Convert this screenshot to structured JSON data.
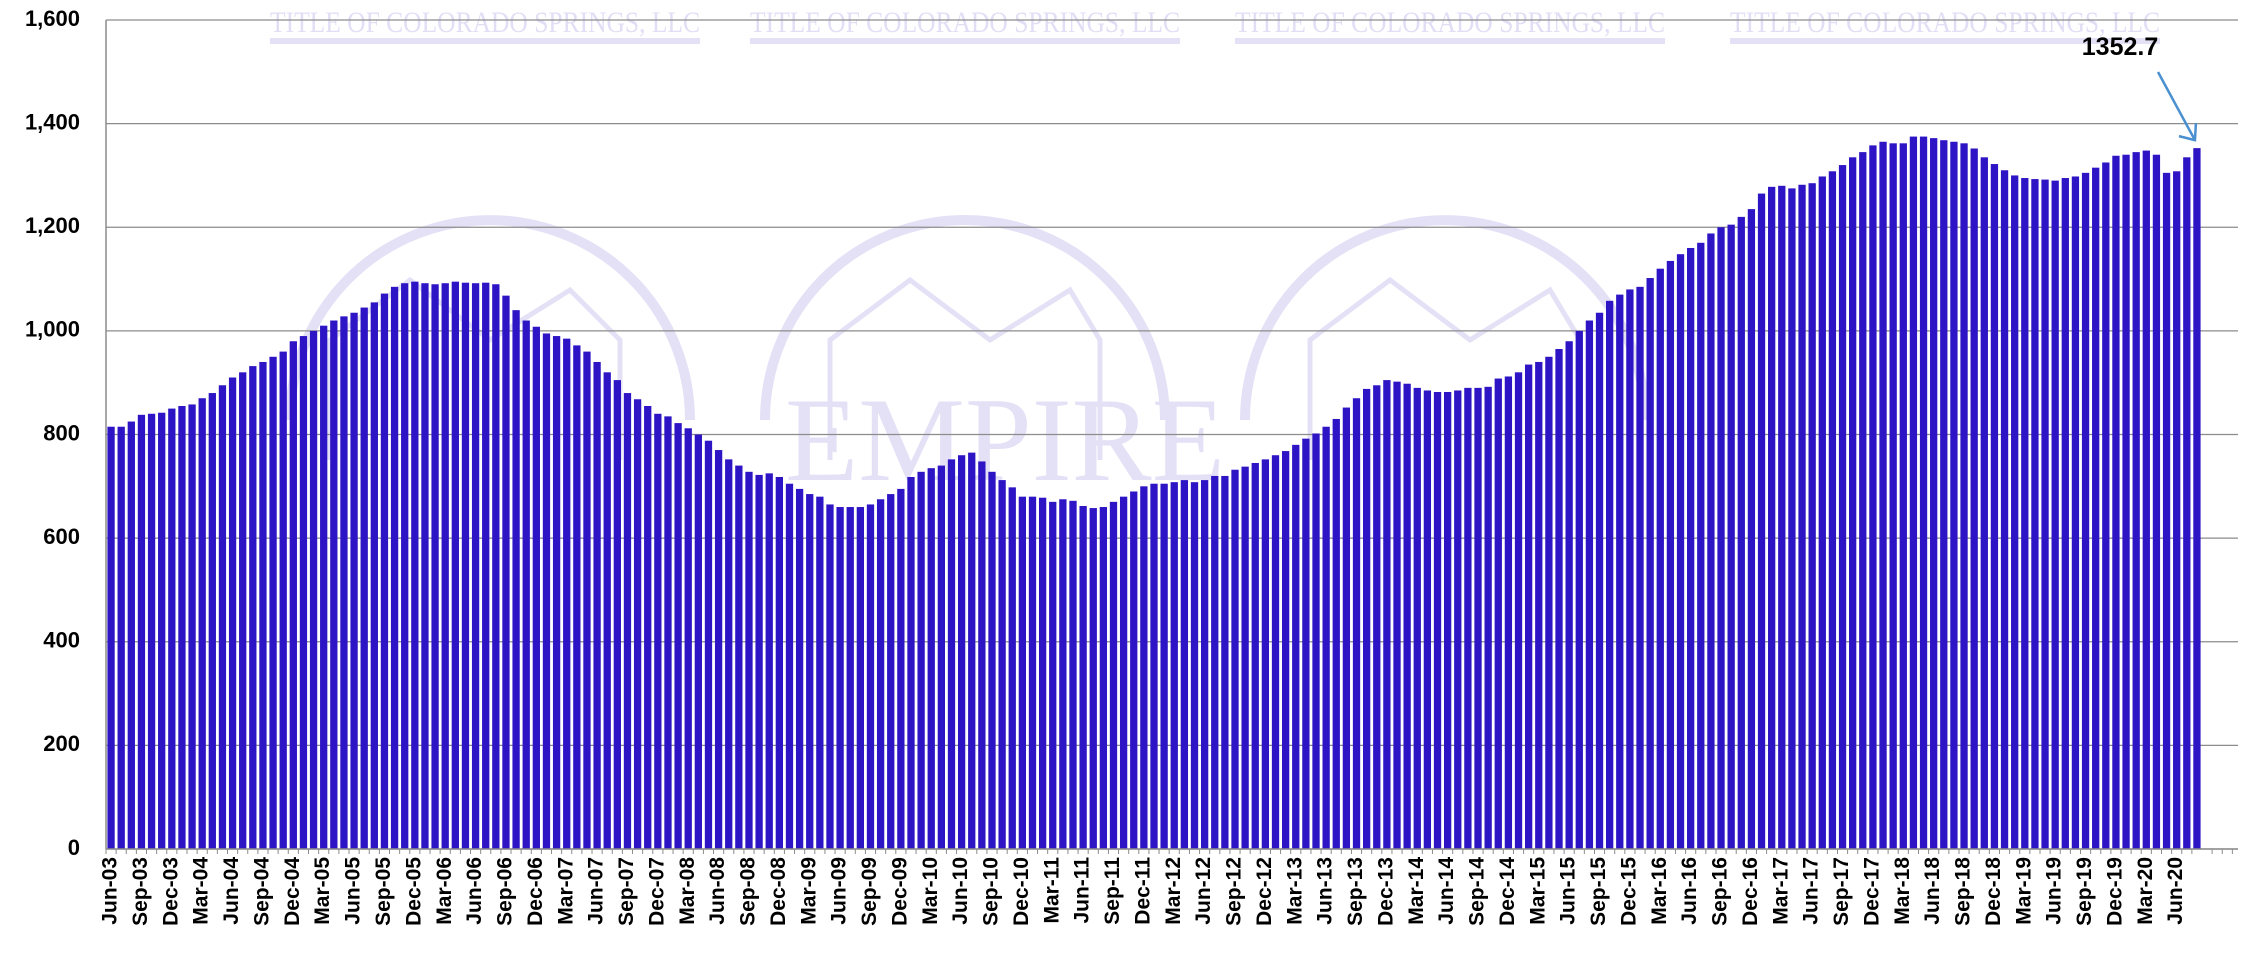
{
  "chart_data": {
    "type": "bar",
    "watermark": {
      "text": "TITLE OF COLORADO SPRINGS, LLC",
      "logo": "EMPIRE"
    },
    "annotation": {
      "text": "1352.7"
    },
    "color": "#2d14c4",
    "grid": true,
    "ylim": [
      0,
      1600
    ],
    "yticks": [
      0,
      200,
      400,
      600,
      800,
      {
        "value": 1000,
        "label": "1,000"
      },
      {
        "value": 1200,
        "label": "1,200"
      },
      {
        "value": 1400,
        "label": "1,400"
      },
      {
        "value": 1600,
        "label": "1,600"
      }
    ],
    "categories": [
      "Jun-03",
      null,
      null,
      "Sep-03",
      null,
      null,
      "Dec-03",
      null,
      null,
      "Mar-04",
      null,
      null,
      "Jun-04",
      null,
      null,
      "Sep-04",
      null,
      null,
      "Dec-04",
      null,
      null,
      "Mar-05",
      null,
      null,
      "Jun-05",
      null,
      null,
      "Sep-05",
      null,
      null,
      "Dec-05",
      null,
      null,
      "Mar-06",
      null,
      null,
      "Jun-06",
      null,
      null,
      "Sep-06",
      null,
      null,
      "Dec-06",
      null,
      null,
      "Mar-07",
      null,
      null,
      "Jun-07",
      null,
      null,
      "Sep-07",
      null,
      null,
      "Dec-07",
      null,
      null,
      "Mar-08",
      null,
      null,
      "Jun-08",
      null,
      null,
      "Sep-08",
      null,
      null,
      "Dec-08",
      null,
      null,
      "Mar-09",
      null,
      null,
      "Jun-09",
      null,
      null,
      "Sep-09",
      null,
      null,
      "Dec-09",
      null,
      null,
      "Mar-10",
      null,
      null,
      "Jun-10",
      null,
      null,
      "Sep-10",
      null,
      null,
      "Dec-10",
      null,
      null,
      "Mar-11",
      null,
      null,
      "Jun-11",
      null,
      null,
      "Sep-11",
      null,
      null,
      "Dec-11",
      null,
      null,
      "Mar-12",
      null,
      null,
      "Jun-12",
      null,
      null,
      "Sep-12",
      null,
      null,
      "Dec-12",
      null,
      null,
      "Mar-13",
      null,
      null,
      "Jun-13",
      null,
      null,
      "Sep-13",
      null,
      null,
      "Dec-13",
      null,
      null,
      "Mar-14",
      null,
      null,
      "Jun-14",
      null,
      null,
      "Sep-14",
      null,
      null,
      "Dec-14",
      null,
      null,
      "Mar-15",
      null,
      null,
      "Jun-15",
      null,
      null,
      "Sep-15",
      null,
      null,
      "Dec-15",
      null,
      null,
      "Mar-16",
      null,
      null,
      "Jun-16",
      null,
      null,
      "Sep-16",
      null,
      null,
      "Dec-16",
      null,
      null,
      "Mar-17",
      null,
      null,
      "Jun-17",
      null,
      null,
      "Sep-17",
      null,
      null,
      "Dec-17",
      null,
      null,
      "Mar-18",
      null,
      null,
      "Jun-18",
      null,
      null,
      "Sep-18",
      null,
      null,
      "Dec-18",
      null,
      null,
      "Mar-19",
      null,
      null,
      "Jun-19",
      null,
      null,
      "Sep-19",
      null,
      null,
      "Dec-19",
      null,
      null,
      "Mar-20",
      null,
      null,
      "Jun-20",
      null,
      null
    ],
    "values": [
      815,
      815,
      825,
      838,
      840,
      842,
      850,
      855,
      858,
      870,
      880,
      895,
      910,
      920,
      932,
      940,
      950,
      960,
      980,
      990,
      1000,
      1010,
      1020,
      1028,
      1035,
      1045,
      1055,
      1072,
      1085,
      1092,
      1095,
      1092,
      1090,
      1092,
      1095,
      1093,
      1092,
      1093,
      1090,
      1068,
      1040,
      1020,
      1008,
      995,
      990,
      985,
      972,
      960,
      940,
      920,
      905,
      880,
      868,
      855,
      840,
      835,
      822,
      812,
      800,
      788,
      770,
      752,
      740,
      728,
      722,
      725,
      718,
      705,
      695,
      685,
      680,
      665,
      660,
      660,
      660,
      665,
      675,
      685,
      695,
      718,
      728,
      735,
      740,
      752,
      760,
      765,
      748,
      728,
      712,
      698,
      680,
      680,
      678,
      670,
      675,
      672,
      662,
      658,
      660,
      670,
      680,
      690,
      700,
      705,
      705,
      708,
      712,
      708,
      712,
      720,
      720,
      732,
      738,
      745,
      752,
      760,
      768,
      780,
      792,
      802,
      815,
      830,
      852,
      870,
      888,
      895,
      905,
      902,
      898,
      890,
      885,
      882,
      882,
      885,
      890,
      890,
      892,
      908,
      912,
      920,
      935,
      940,
      950,
      965,
      980,
      1000,
      1020,
      1035,
      1058,
      1070,
      1080,
      1085,
      1102,
      1120,
      1135,
      1148,
      1160,
      1170,
      1188,
      1200,
      1205,
      1220,
      1235,
      1265,
      1278,
      1280,
      1275,
      1282,
      1285,
      1298,
      1308,
      1320,
      1335,
      1345,
      1358,
      1365,
      1362,
      1362,
      1375,
      1375,
      1372,
      1368,
      1365,
      1362,
      1352,
      1335,
      1322,
      1310,
      1300,
      1295,
      1293,
      1292,
      1290,
      1295,
      1298,
      1305,
      1315,
      1325,
      1338,
      1340,
      1345,
      1348,
      1340,
      1305,
      1308,
      1335,
      1352.7
    ]
  }
}
